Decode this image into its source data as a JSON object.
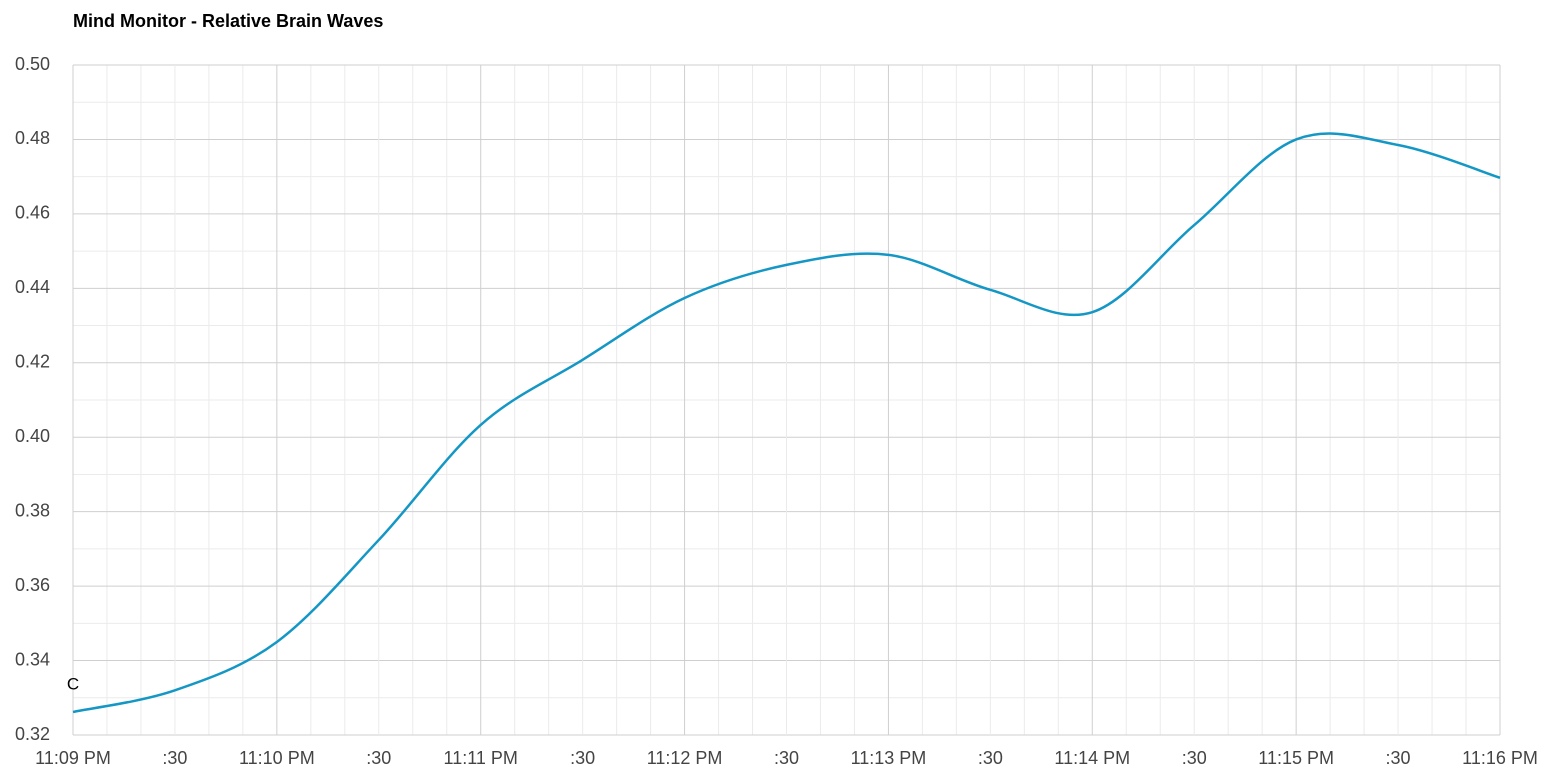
{
  "chart_data": {
    "type": "line",
    "title": "Mind Monitor - Relative Brain Waves",
    "annotation": "C",
    "x": [
      "11:09:00 PM",
      "11:09:30 PM",
      "11:10:00 PM",
      "11:10:30 PM",
      "11:11:00 PM",
      "11:11:30 PM",
      "11:12:00 PM",
      "11:12:30 PM",
      "11:13:00 PM",
      "11:13:30 PM",
      "11:14:00 PM",
      "11:14:30 PM",
      "11:15:00 PM",
      "11:15:30 PM",
      "11:16:00 PM"
    ],
    "series": [
      {
        "name": "C",
        "color": "#1497c5",
        "values": [
          0.3262,
          0.332,
          0.345,
          0.3724,
          0.4033,
          0.4208,
          0.4374,
          0.4463,
          0.449,
          0.4396,
          0.4336,
          0.457,
          0.48,
          0.4785,
          0.4697
        ]
      }
    ],
    "xlim": [
      "11:09:00 PM",
      "11:16:00 PM"
    ],
    "xticks": [
      {
        "value": "11:09:00 PM",
        "label": "11:09 PM"
      },
      {
        "value": "11:09:30 PM",
        "label": ":30"
      },
      {
        "value": "11:10:00 PM",
        "label": "11:10 PM"
      },
      {
        "value": "11:10:30 PM",
        "label": ":30"
      },
      {
        "value": "11:11:00 PM",
        "label": "11:11 PM"
      },
      {
        "value": "11:11:30 PM",
        "label": ":30"
      },
      {
        "value": "11:12:00 PM",
        "label": "11:12 PM"
      },
      {
        "value": "11:12:30 PM",
        "label": ":30"
      },
      {
        "value": "11:13:00 PM",
        "label": "11:13 PM"
      },
      {
        "value": "11:13:30 PM",
        "label": ":30"
      },
      {
        "value": "11:14:00 PM",
        "label": "11:14 PM"
      },
      {
        "value": "11:14:30 PM",
        "label": ":30"
      },
      {
        "value": "11:15:00 PM",
        "label": "11:15 PM"
      },
      {
        "value": "11:15:30 PM",
        "label": ":30"
      },
      {
        "value": "11:16:00 PM",
        "label": "11:16 PM"
      }
    ],
    "ylim": [
      0.32,
      0.5
    ],
    "yticks": [
      {
        "value": 0.32,
        "label": "0.32"
      },
      {
        "value": 0.34,
        "label": "0.34"
      },
      {
        "value": 0.36,
        "label": "0.36"
      },
      {
        "value": 0.38,
        "label": "0.38"
      },
      {
        "value": 0.4,
        "label": "0.40"
      },
      {
        "value": 0.42,
        "label": "0.42"
      },
      {
        "value": 0.44,
        "label": "0.44"
      },
      {
        "value": 0.46,
        "label": "0.46"
      },
      {
        "value": 0.48,
        "label": "0.48"
      },
      {
        "value": 0.5,
        "label": "0.50"
      }
    ],
    "grid": true
  }
}
